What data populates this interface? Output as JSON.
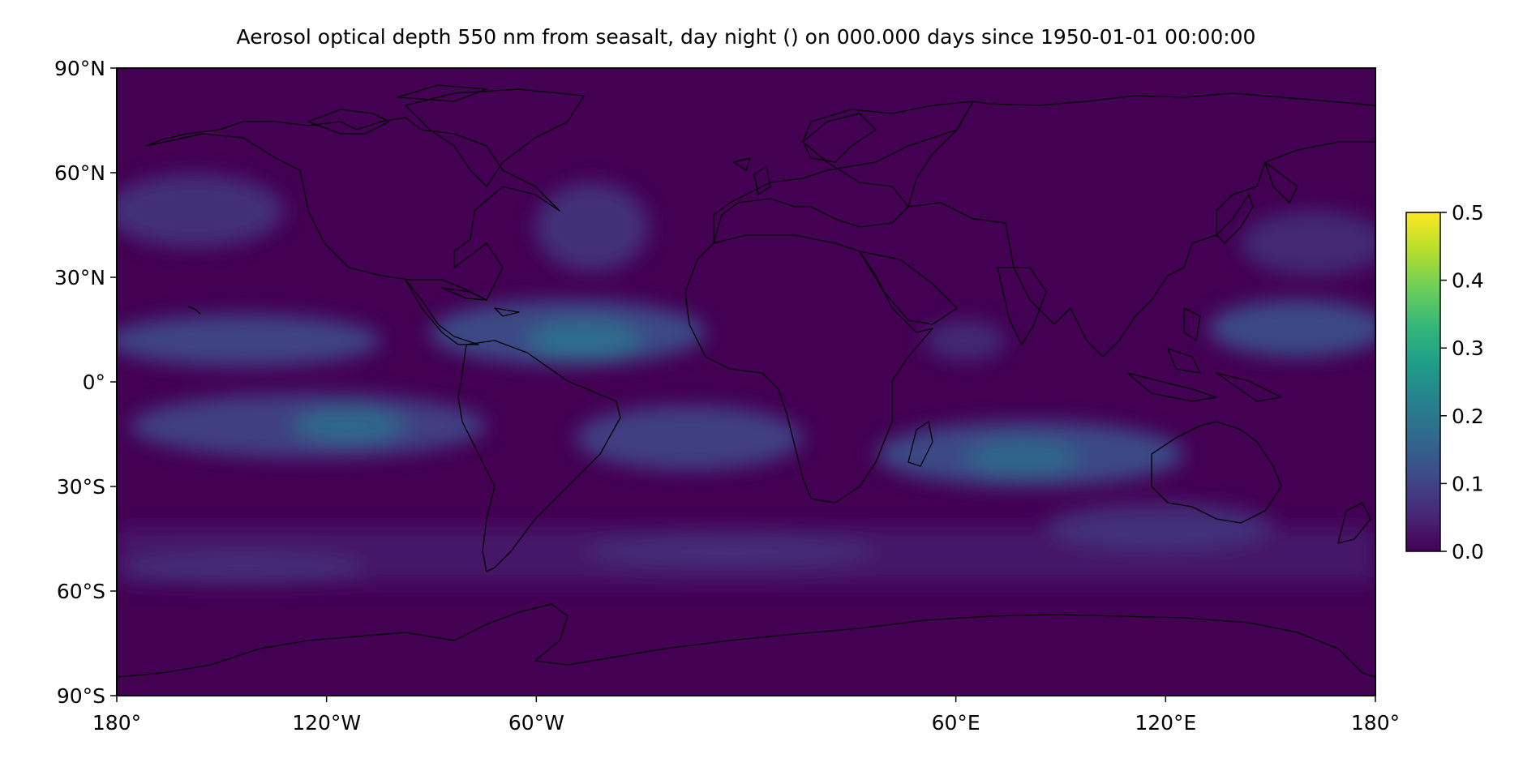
{
  "title": "Aerosol optical depth 550 nm from seasalt, day night () on 000.000 days since 1950-01-01 00:00:00",
  "map": {
    "projection": "PlateCarree",
    "colormap": "viridis",
    "coastlines": true,
    "lon_range": [
      -180,
      180
    ],
    "lat_range": [
      -90,
      90
    ],
    "lat_ticks": [
      {
        "value": 90,
        "label": "90°N"
      },
      {
        "value": 60,
        "label": "60°N"
      },
      {
        "value": 30,
        "label": "30°N"
      },
      {
        "value": 0,
        "label": "0°"
      },
      {
        "value": -30,
        "label": "30°S"
      },
      {
        "value": -60,
        "label": "60°S"
      },
      {
        "value": -90,
        "label": "90°S"
      }
    ],
    "lon_ticks": [
      {
        "value": -180,
        "label": "180°"
      },
      {
        "value": -120,
        "label": "120°W"
      },
      {
        "value": -60,
        "label": "60°W"
      },
      {
        "value": 60,
        "label": "60°E"
      },
      {
        "value": 120,
        "label": "120°E"
      },
      {
        "value": 180,
        "label": "180°"
      }
    ],
    "background_value": 0.0
  },
  "colorbar": {
    "range": [
      0.0,
      0.5
    ],
    "ticks": [
      {
        "value": 0.0,
        "label": "0.0"
      },
      {
        "value": 0.1,
        "label": "0.1"
      },
      {
        "value": 0.2,
        "label": "0.2"
      },
      {
        "value": 0.3,
        "label": "0.3"
      },
      {
        "value": 0.4,
        "label": "0.4"
      },
      {
        "value": 0.5,
        "label": "0.5"
      }
    ],
    "stops": [
      "#440154",
      "#482878",
      "#3e4a89",
      "#31688e",
      "#26828e",
      "#1f9e89",
      "#35b779",
      "#6ece58",
      "#b5de2b",
      "#fde725"
    ]
  }
}
